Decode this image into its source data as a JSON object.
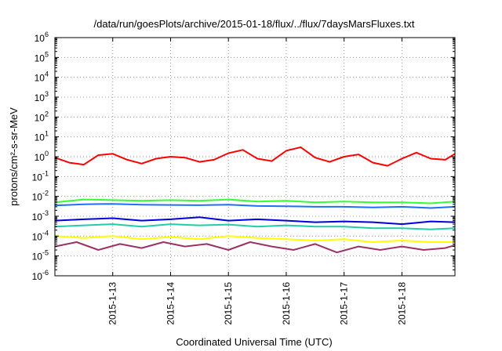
{
  "chart_data": {
    "type": "line",
    "title": "/data/run/goesPlots/archive/2015-01-18/flux/../flux/7daysMarsFluxes.txt",
    "xlabel": "Coordinated Universal Time (UTC)",
    "ylabel": "protons/cm²-s-sr-MeV",
    "y_scale": "log",
    "ylim": [
      1e-06,
      1000000.0
    ],
    "xlim": [
      "2015-01-12T00:00",
      "2015-01-18T22:00"
    ],
    "grid": "dotted",
    "x_ticks": [
      "2015-1-13",
      "2015-1-14",
      "2015-1-15",
      "2015-1-16",
      "2015-1-17",
      "2015-1-18"
    ],
    "y_ticks": [
      {
        "base": "10",
        "exp": "-6"
      },
      {
        "base": "10",
        "exp": "-5"
      },
      {
        "base": "10",
        "exp": "-4"
      },
      {
        "base": "10",
        "exp": "-3"
      },
      {
        "base": "10",
        "exp": "-2"
      },
      {
        "base": "10",
        "exp": "-1"
      },
      {
        "base": "10",
        "exp": "0"
      },
      {
        "base": "10",
        "exp": "1"
      },
      {
        "base": "10",
        "exp": "2"
      },
      {
        "base": "10",
        "exp": "3"
      },
      {
        "base": "10",
        "exp": "4"
      },
      {
        "base": "10",
        "exp": "5"
      },
      {
        "base": "10",
        "exp": "6"
      }
    ],
    "series": [
      {
        "color": "#ff0000",
        "x": [
          "2015-01-12T00:00",
          "2015-01-12T06:00",
          "2015-01-12T12:00",
          "2015-01-12T18:00",
          "2015-01-13T00:00",
          "2015-01-13T06:00",
          "2015-01-13T12:00",
          "2015-01-13T18:00",
          "2015-01-14T00:00",
          "2015-01-14T06:00",
          "2015-01-14T12:00",
          "2015-01-14T18:00",
          "2015-01-15T00:00",
          "2015-01-15T06:00",
          "2015-01-15T12:00",
          "2015-01-15T18:00",
          "2015-01-16T00:00",
          "2015-01-16T06:00",
          "2015-01-16T12:00",
          "2015-01-16T18:00",
          "2015-01-17T00:00",
          "2015-01-17T06:00",
          "2015-01-17T12:00",
          "2015-01-17T18:00",
          "2015-01-18T00:00",
          "2015-01-18T06:00",
          "2015-01-18T12:00",
          "2015-01-18T18:00",
          "2015-01-18T22:00"
        ],
        "y": [
          0.9,
          0.5,
          0.4,
          1.2,
          1.4,
          0.7,
          0.45,
          0.8,
          1.0,
          0.9,
          0.55,
          0.7,
          1.5,
          2.2,
          0.8,
          0.6,
          2.0,
          3.0,
          0.9,
          0.55,
          1.0,
          1.3,
          0.5,
          0.35,
          0.8,
          1.6,
          0.8,
          0.7,
          1.4
        ]
      },
      {
        "color": "#33ff33",
        "x": [
          "2015-01-12T00:00",
          "2015-01-12T12:00",
          "2015-01-13T00:00",
          "2015-01-13T12:00",
          "2015-01-14T00:00",
          "2015-01-14T12:00",
          "2015-01-15T00:00",
          "2015-01-15T12:00",
          "2015-01-16T00:00",
          "2015-01-16T12:00",
          "2015-01-17T00:00",
          "2015-01-17T12:00",
          "2015-01-18T00:00",
          "2015-01-18T12:00",
          "2015-01-18T22:00"
        ],
        "y": [
          0.005,
          0.007,
          0.0065,
          0.006,
          0.0065,
          0.006,
          0.007,
          0.0055,
          0.006,
          0.005,
          0.0055,
          0.005,
          0.005,
          0.0045,
          0.0055
        ]
      },
      {
        "color": "#1e6fff",
        "x": [
          "2015-01-12T00:00",
          "2015-01-12T12:00",
          "2015-01-13T00:00",
          "2015-01-13T12:00",
          "2015-01-14T00:00",
          "2015-01-14T12:00",
          "2015-01-15T00:00",
          "2015-01-15T12:00",
          "2015-01-16T00:00",
          "2015-01-16T12:00",
          "2015-01-17T00:00",
          "2015-01-17T12:00",
          "2015-01-18T00:00",
          "2015-01-18T12:00",
          "2015-01-18T22:00"
        ],
        "y": [
          0.0035,
          0.004,
          0.0042,
          0.0038,
          0.0037,
          0.0036,
          0.0038,
          0.0033,
          0.0032,
          0.003,
          0.003,
          0.0028,
          0.003,
          0.0026,
          0.003
        ]
      },
      {
        "color": "#0000dd",
        "x": [
          "2015-01-12T00:00",
          "2015-01-12T12:00",
          "2015-01-13T00:00",
          "2015-01-13T12:00",
          "2015-01-14T00:00",
          "2015-01-14T12:00",
          "2015-01-15T00:00",
          "2015-01-15T12:00",
          "2015-01-16T00:00",
          "2015-01-16T12:00",
          "2015-01-17T00:00",
          "2015-01-17T12:00",
          "2015-01-18T00:00",
          "2015-01-18T12:00",
          "2015-01-18T22:00"
        ],
        "y": [
          0.0006,
          0.0007,
          0.0008,
          0.0006,
          0.0007,
          0.0009,
          0.0006,
          0.0007,
          0.0006,
          0.0005,
          0.00055,
          0.0005,
          0.0004,
          0.00055,
          0.0005
        ]
      },
      {
        "color": "#22ccaa",
        "x": [
          "2015-01-12T00:00",
          "2015-01-12T12:00",
          "2015-01-13T00:00",
          "2015-01-13T12:00",
          "2015-01-14T00:00",
          "2015-01-14T12:00",
          "2015-01-15T00:00",
          "2015-01-15T12:00",
          "2015-01-16T00:00",
          "2015-01-16T12:00",
          "2015-01-17T00:00",
          "2015-01-17T12:00",
          "2015-01-18T00:00",
          "2015-01-18T12:00",
          "2015-01-18T22:00"
        ],
        "y": [
          0.0003,
          0.00035,
          0.0004,
          0.0003,
          0.0004,
          0.00035,
          0.00038,
          0.0003,
          0.00035,
          0.0003,
          0.0003,
          0.00025,
          0.00025,
          0.00022,
          0.00025
        ]
      },
      {
        "color": "#ffff00",
        "x": [
          "2015-01-12T00:00",
          "2015-01-12T12:00",
          "2015-01-13T00:00",
          "2015-01-13T12:00",
          "2015-01-14T00:00",
          "2015-01-14T12:00",
          "2015-01-15T00:00",
          "2015-01-15T12:00",
          "2015-01-16T00:00",
          "2015-01-16T12:00",
          "2015-01-17T00:00",
          "2015-01-17T12:00",
          "2015-01-18T00:00",
          "2015-01-18T12:00",
          "2015-01-18T22:00"
        ],
        "y": [
          0.0001,
          8e-05,
          0.0001,
          7e-05,
          9e-05,
          7e-05,
          0.0001,
          8e-05,
          7e-05,
          6e-05,
          7e-05,
          5e-05,
          6e-05,
          5e-05,
          5e-05
        ]
      },
      {
        "color": "#993366",
        "x": [
          "2015-01-12T00:00",
          "2015-01-12T09:00",
          "2015-01-12T18:00",
          "2015-01-13T03:00",
          "2015-01-13T12:00",
          "2015-01-13T21:00",
          "2015-01-14T06:00",
          "2015-01-14T15:00",
          "2015-01-15T00:00",
          "2015-01-15T09:00",
          "2015-01-15T18:00",
          "2015-01-16T03:00",
          "2015-01-16T12:00",
          "2015-01-16T21:00",
          "2015-01-17T06:00",
          "2015-01-17T15:00",
          "2015-01-18T00:00",
          "2015-01-18T09:00",
          "2015-01-18T18:00",
          "2015-01-18T22:00"
        ],
        "y": [
          3e-05,
          5e-05,
          2e-05,
          4e-05,
          2.5e-05,
          5e-05,
          3e-05,
          4e-05,
          2e-05,
          5e-05,
          3e-05,
          2e-05,
          4e-05,
          1.5e-05,
          3e-05,
          2e-05,
          3e-05,
          2e-05,
          2.5e-05,
          3.5e-05
        ]
      }
    ]
  }
}
